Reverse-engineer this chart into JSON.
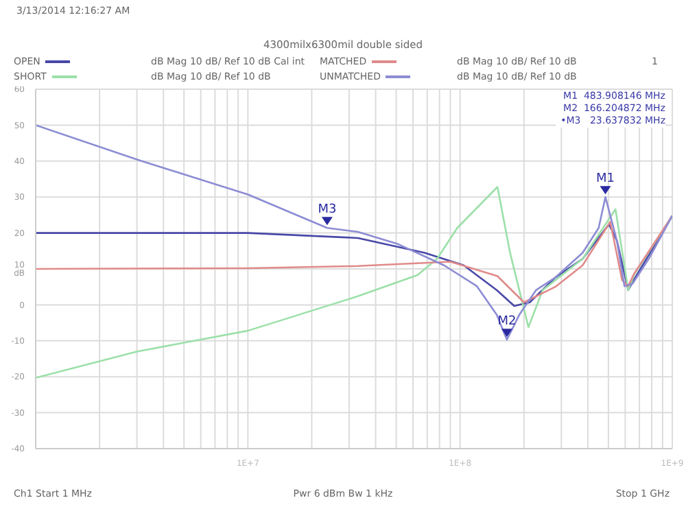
{
  "chart_data": {
    "type": "line",
    "title": "4300milx6300mil double sided",
    "xlabel": null,
    "series": [
      {
        "name": "OPEN",
        "color": "#4848a8",
        "x": [
          1000000,
          3900000,
          10000000,
          33000000,
          68000000,
          104000000,
          149000000,
          180000000,
          213000000,
          281000000,
          378000000,
          503000000,
          548000000,
          620000000,
          660000000,
          1000000000
        ],
        "values": [
          20,
          20,
          20,
          18.6,
          14.5,
          11,
          4.1,
          -0.3,
          0.7,
          7.6,
          12.8,
          22.4,
          17.9,
          4.1,
          7,
          24.8
        ]
      },
      {
        "name": "SHORT",
        "color": "#9be0a8",
        "x": [
          1000000,
          3000000,
          10000000,
          33000000,
          63000000,
          78000000,
          97000000,
          150000000,
          172000000,
          210000000,
          245000000,
          378000000,
          540000000,
          620000000,
          660000000,
          1000000000
        ],
        "values": [
          -20.3,
          -13,
          -7.2,
          2.4,
          8.3,
          12.8,
          21.4,
          32.8,
          14.5,
          -6.2,
          4.1,
          12.8,
          26.6,
          4.1,
          8.3,
          24.8
        ]
      },
      {
        "name": "MATCHED",
        "color": "#e08a8a",
        "x": [
          1000000,
          10000000,
          33000000,
          90000000,
          150000000,
          200000000,
          281000000,
          378000000,
          510000000,
          580000000,
          620000000,
          660000000,
          1000000000
        ],
        "values": [
          10,
          10.2,
          10.8,
          12,
          8,
          0.7,
          5,
          11,
          23.1,
          6.9,
          5.2,
          8.6,
          24.8
        ]
      },
      {
        "name": "UNMATCHED",
        "color": "#8c8cd4",
        "x": [
          1000000,
          3050000,
          10000000,
          23637832,
          33000000,
          51000000,
          84000000,
          120000000,
          149000000,
          166204872,
          190000000,
          228000000,
          281000000,
          378000000,
          450000000,
          483908146,
          548000000,
          595000000,
          650000000,
          775000000,
          1000000000
        ],
        "values": [
          50,
          40.3,
          30.7,
          21.4,
          20.3,
          16.9,
          11,
          5.2,
          -2.8,
          -9.7,
          -2.8,
          4.1,
          7.6,
          14.5,
          21.4,
          30,
          17.9,
          5.2,
          5.9,
          12.8,
          24.8
        ]
      }
    ],
    "log": "x",
    "grid": true,
    "legend": "top",
    "marker": "none",
    "line_style": "solid",
    "xlim": [
      1000000,
      1000000000
    ],
    "xticks": [
      {
        "value": 1000000,
        "label": null
      },
      {
        "value": 2000000,
        "label": null
      },
      {
        "value": 3000000,
        "label": null
      },
      {
        "value": 4000000,
        "label": null
      },
      {
        "value": 5000000,
        "label": null
      },
      {
        "value": 6000000,
        "label": null
      },
      {
        "value": 7000000,
        "label": null
      },
      {
        "value": 8000000,
        "label": null
      },
      {
        "value": 9000000,
        "label": null
      },
      {
        "value": 10000000,
        "label": "1E+7"
      },
      {
        "value": 20000000,
        "label": null
      },
      {
        "value": 30000000,
        "label": null
      },
      {
        "value": 40000000,
        "label": null
      },
      {
        "value": 50000000,
        "label": null
      },
      {
        "value": 60000000,
        "label": null
      },
      {
        "value": 70000000,
        "label": null
      },
      {
        "value": 80000000,
        "label": null
      },
      {
        "value": 90000000,
        "label": null
      },
      {
        "value": 100000000,
        "label": "1E+8"
      },
      {
        "value": 200000000,
        "label": null
      },
      {
        "value": 300000000,
        "label": null
      },
      {
        "value": 400000000,
        "label": null
      },
      {
        "value": 500000000,
        "label": null
      },
      {
        "value": 600000000,
        "label": null
      },
      {
        "value": 700000000,
        "label": null
      },
      {
        "value": 800000000,
        "label": null
      },
      {
        "value": 900000000,
        "label": null
      },
      {
        "value": 1000000000,
        "label": "1E+9"
      }
    ],
    "ylim": [
      -40,
      60
    ],
    "yticks": [
      -40,
      -30,
      -20,
      -10,
      0,
      {
        "value": 10,
        "label": "10 dB"
      },
      20,
      30,
      40,
      50,
      60
    ],
    "annotations": [
      "3/13/2014 12:16:27 AM",
      "dB Mag  10 dB/ Ref 10 dB  Cal int",
      "dB Mag  10 dB/ Ref 10 dB",
      "dB Mag  10 dB/ Ref 10 dB",
      "dB Mag  10 dB/ Ref 10 dB",
      "1",
      "M1  483.908146 MHz",
      "M2  166.204872 MHz",
      "•M3   23.637832 MHz",
      "Ch1  Start  1 MHz",
      "Pwr  6 dBm  Bw  1 kHz",
      "Stop  1 GHz",
      {
        "text": "M1",
        "x": 483908146,
        "y": 30
      },
      {
        "text": "M2",
        "x": 166204872,
        "y": -9.7
      },
      {
        "text": "M3",
        "x": 23637832,
        "y": 21.4
      }
    ]
  }
}
